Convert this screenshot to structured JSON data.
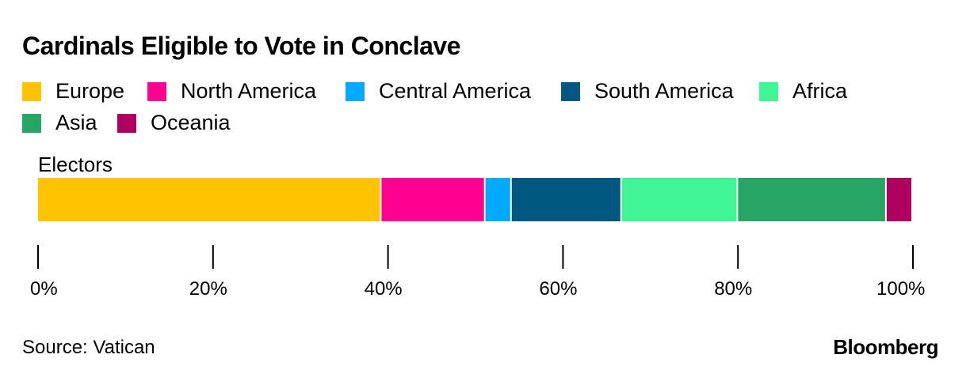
{
  "chart_data": {
    "type": "bar",
    "orientation": "horizontal-stacked",
    "title": "Cardinals Eligible to Vote in Conclave",
    "categories": [
      "Electors"
    ],
    "series": [
      {
        "name": "Europe",
        "values": [
          39.3
        ],
        "color": "#FFC300"
      },
      {
        "name": "North America",
        "values": [
          11.9
        ],
        "color": "#FF0090"
      },
      {
        "name": "Central America",
        "values": [
          3.0
        ],
        "color": "#00AAFF"
      },
      {
        "name": "South America",
        "values": [
          12.6
        ],
        "color": "#005780"
      },
      {
        "name": "Africa",
        "values": [
          13.3
        ],
        "color": "#40F593"
      },
      {
        "name": "Asia",
        "values": [
          17.0
        ],
        "color": "#26A565"
      },
      {
        "name": "Oceania",
        "values": [
          3.0
        ],
        "color": "#B0005F"
      }
    ],
    "xlim": [
      0,
      100
    ],
    "x_ticks": [
      "0%",
      "20%",
      "40%",
      "60%",
      "80%",
      "100%"
    ],
    "x_tick_values": [
      0,
      20,
      40,
      60,
      80,
      100
    ],
    "grid": false,
    "legend_placement": "top"
  },
  "footer": {
    "source": "Source: Vatican",
    "logo": "Bloomberg"
  }
}
